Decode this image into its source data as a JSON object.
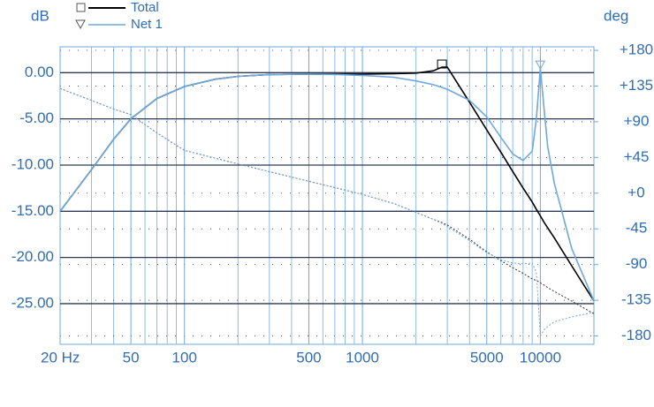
{
  "chart_data": {
    "type": "line",
    "y_label": "dB",
    "y2_label": "deg",
    "x_log": true,
    "x": [
      20,
      30,
      40,
      50,
      70,
      100,
      150,
      200,
      300,
      500,
      700,
      1000,
      1500,
      2000,
      2500,
      2800,
      3000,
      4000,
      5000,
      6000,
      7000,
      8000,
      9000,
      9500,
      10000,
      10500,
      11000,
      12000,
      15000,
      20000
    ],
    "series": [
      {
        "name": "Total",
        "color": "#000000",
        "values": [
          -15,
          -10.5,
          -7.2,
          -5,
          -2.8,
          -1.5,
          -0.7,
          -0.4,
          -0.2,
          -0.15,
          -0.15,
          -0.15,
          -0.1,
          -0.05,
          0.2,
          0.6,
          0.6,
          -3.2,
          -6.2,
          -8.6,
          -10.7,
          -12.5,
          -14,
          -14.8,
          -15.5,
          -16.2,
          -16.8,
          -17.9,
          -20.9,
          -24.7
        ],
        "phase": [
          132,
          117,
          106,
          99,
          76,
          54,
          44,
          37,
          27,
          15,
          7,
          -1.5,
          -13,
          -24,
          -33,
          -37,
          -40,
          -58,
          -74,
          -85,
          -94,
          -101,
          -108,
          -110,
          -113,
          -116,
          -119,
          -124,
          -136,
          -152
        ]
      },
      {
        "name": "Net 1",
        "color": "#6ea8dc",
        "values": [
          -15,
          -10.5,
          -7.2,
          -5,
          -2.8,
          -1.5,
          -0.7,
          -0.4,
          -0.2,
          -0.15,
          -0.2,
          -0.3,
          -0.5,
          -0.9,
          -1.3,
          -1.6,
          -1.8,
          -3,
          -4.8,
          -7,
          -8.8,
          -9.5,
          -8.5,
          -5,
          0.5,
          -4,
          -8,
          -12,
          -19,
          -24.7
        ],
        "phase": [
          132,
          117,
          106,
          99,
          76,
          54,
          44,
          37,
          27,
          15,
          7,
          -1.5,
          -13,
          -24,
          -33,
          -38,
          -42,
          -60,
          -75,
          -84,
          -88,
          -89,
          -88,
          -100,
          -180,
          -172,
          -168,
          -162,
          -156,
          -150
        ]
      }
    ],
    "xlim": [
      20,
      20000
    ],
    "xticks": [
      {
        "value": 20,
        "label": "20 Hz"
      },
      50,
      100,
      500,
      1000,
      5000,
      10000
    ],
    "minor_xticks": [
      30,
      40,
      60,
      70,
      80,
      90,
      200,
      300,
      400,
      600,
      700,
      800,
      900,
      2000,
      3000,
      4000,
      6000,
      7000,
      8000,
      9000
    ],
    "ylim": [
      -29.4,
      2.8
    ],
    "yticks": [
      {
        "value": 0,
        "label": "0.00"
      },
      {
        "value": -5,
        "label": "-5.00"
      },
      {
        "value": -10,
        "label": "-10.00"
      },
      {
        "value": -15,
        "label": "-15.00"
      },
      {
        "value": -20,
        "label": "-20.00"
      },
      {
        "value": -25,
        "label": "-25.00"
      }
    ],
    "y2lim": [
      -190.5,
      184.5
    ],
    "y2ticks": [
      {
        "value": 180,
        "label": "+180"
      },
      {
        "value": 135,
        "label": "+135"
      },
      {
        "value": 90,
        "label": "+90"
      },
      {
        "value": 45,
        "label": "+45"
      },
      {
        "value": 0,
        "label": "+0"
      },
      -45,
      -90,
      -135,
      -180
    ],
    "grid": true,
    "legend": "top-left"
  }
}
